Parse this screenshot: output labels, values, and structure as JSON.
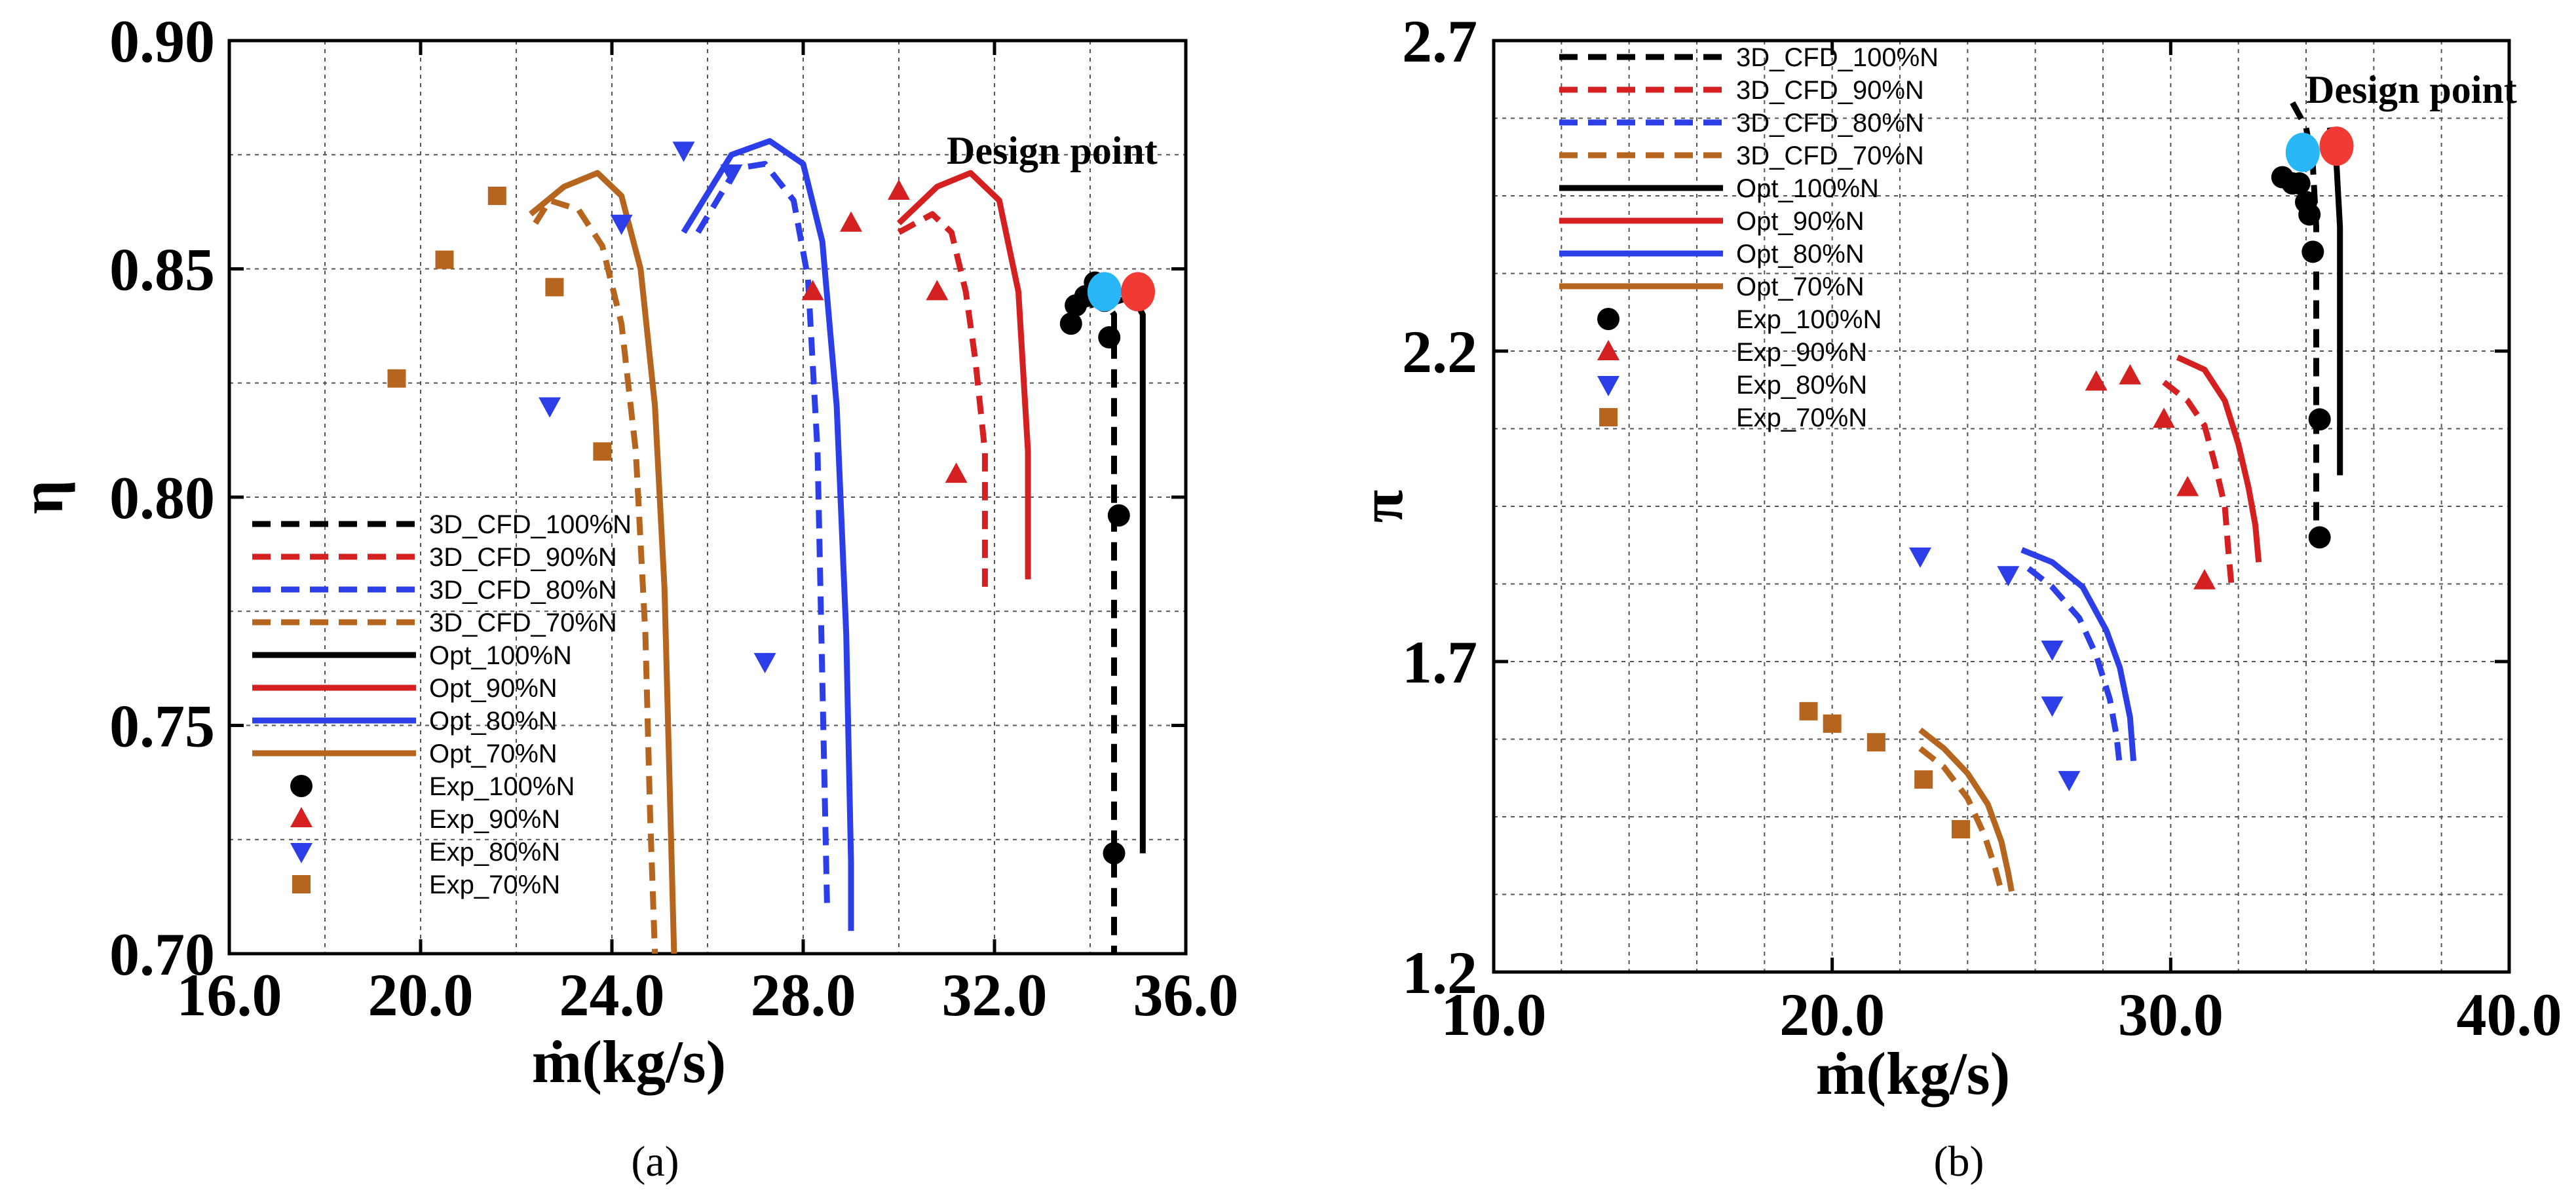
{
  "chart_data": [
    {
      "panel": "(a)",
      "type": "line",
      "xlabel": "ṁ(kg/s)",
      "ylabel": "η",
      "xlim": [
        16.0,
        36.0
      ],
      "ylim": [
        0.7,
        0.9
      ],
      "xticks": [
        "16.0",
        "20.0",
        "24.0",
        "28.0",
        "32.0",
        "36.0"
      ],
      "yticks": [
        "0.70",
        "0.75",
        "0.80",
        "0.85",
        "0.90"
      ],
      "xtick_values": [
        16,
        20,
        24,
        28,
        32,
        36
      ],
      "ytick_values": [
        0.7,
        0.75,
        0.8,
        0.85,
        0.9
      ],
      "grid": true,
      "legend_position": "lower-left",
      "annotation": {
        "text": "Design point",
        "x": 31.0,
        "y": 0.873
      },
      "series": [
        {
          "name": "3D_CFD_100%N",
          "style": "dashed",
          "color": "#000000",
          "points": [
            [
              34.0,
              0.842
            ],
            [
              34.3,
              0.843
            ],
            [
              34.5,
              0.84
            ],
            [
              34.5,
              0.8
            ],
            [
              34.5,
              0.75
            ],
            [
              34.5,
              0.7
            ]
          ]
        },
        {
          "name": "3D_CFD_90%N",
          "style": "dashed",
          "color": "#d42020",
          "points": [
            [
              30.0,
              0.858
            ],
            [
              30.7,
              0.862
            ],
            [
              31.1,
              0.858
            ],
            [
              31.4,
              0.845
            ],
            [
              31.6,
              0.83
            ],
            [
              31.8,
              0.81
            ],
            [
              31.8,
              0.78
            ]
          ]
        },
        {
          "name": "3D_CFD_80%N",
          "style": "dashed",
          "color": "#2c3ee8",
          "points": [
            [
              25.8,
              0.858
            ],
            [
              26.6,
              0.872
            ],
            [
              27.2,
              0.873
            ],
            [
              27.8,
              0.865
            ],
            [
              28.1,
              0.848
            ],
            [
              28.3,
              0.81
            ],
            [
              28.4,
              0.76
            ],
            [
              28.5,
              0.71
            ]
          ]
        },
        {
          "name": "3D_CFD_70%N",
          "style": "dashed",
          "color": "#b5651d",
          "points": [
            [
              22.4,
              0.86
            ],
            [
              22.7,
              0.865
            ],
            [
              23.3,
              0.863
            ],
            [
              23.8,
              0.855
            ],
            [
              24.2,
              0.838
            ],
            [
              24.5,
              0.81
            ],
            [
              24.7,
              0.77
            ],
            [
              24.8,
              0.73
            ],
            [
              24.9,
              0.7
            ]
          ]
        },
        {
          "name": "Opt_100%N",
          "style": "solid",
          "color": "#000000",
          "points": [
            [
              34.3,
              0.842
            ],
            [
              34.9,
              0.844
            ],
            [
              35.1,
              0.84
            ],
            [
              35.1,
              0.8
            ],
            [
              35.1,
              0.76
            ],
            [
              35.1,
              0.722
            ]
          ]
        },
        {
          "name": "Opt_90%N",
          "style": "solid",
          "color": "#d42020",
          "points": [
            [
              30.0,
              0.86
            ],
            [
              30.8,
              0.868
            ],
            [
              31.5,
              0.871
            ],
            [
              32.1,
              0.865
            ],
            [
              32.5,
              0.845
            ],
            [
              32.7,
              0.81
            ],
            [
              32.7,
              0.782
            ]
          ]
        },
        {
          "name": "Opt_80%N",
          "style": "solid",
          "color": "#2c3ee8",
          "points": [
            [
              25.5,
              0.858
            ],
            [
              26.5,
              0.875
            ],
            [
              27.3,
              0.878
            ],
            [
              28.0,
              0.873
            ],
            [
              28.4,
              0.856
            ],
            [
              28.7,
              0.82
            ],
            [
              28.9,
              0.77
            ],
            [
              29.0,
              0.72
            ],
            [
              29.0,
              0.705
            ]
          ]
        },
        {
          "name": "Opt_70%N",
          "style": "solid",
          "color": "#b5651d",
          "points": [
            [
              22.3,
              0.862
            ],
            [
              23.0,
              0.868
            ],
            [
              23.7,
              0.871
            ],
            [
              24.2,
              0.866
            ],
            [
              24.6,
              0.85
            ],
            [
              24.9,
              0.82
            ],
            [
              25.1,
              0.78
            ],
            [
              25.2,
              0.74
            ],
            [
              25.3,
              0.7
            ]
          ]
        },
        {
          "name": "Exp_100%N",
          "style": "marker",
          "marker": "circle",
          "color": "#000000",
          "points": [
            [
              33.6,
              0.838
            ],
            [
              33.7,
              0.842
            ],
            [
              33.9,
              0.844
            ],
            [
              34.1,
              0.847
            ],
            [
              34.3,
              0.843
            ],
            [
              34.4,
              0.835
            ],
            [
              34.6,
              0.796
            ],
            [
              34.5,
              0.722
            ]
          ]
        },
        {
          "name": "Exp_90%N",
          "style": "marker",
          "marker": "triangle-up",
          "color": "#d42020",
          "points": [
            [
              28.2,
              0.845
            ],
            [
              29.0,
              0.86
            ],
            [
              30.0,
              0.867
            ],
            [
              30.8,
              0.845
            ],
            [
              31.2,
              0.805
            ]
          ]
        },
        {
          "name": "Exp_80%N",
          "style": "marker",
          "marker": "triangle-down",
          "color": "#2c3ee8",
          "points": [
            [
              22.7,
              0.82
            ],
            [
              24.2,
              0.86
            ],
            [
              25.5,
              0.876
            ],
            [
              26.5,
              0.871
            ],
            [
              27.2,
              0.764
            ]
          ]
        },
        {
          "name": "Exp_70%N",
          "style": "marker",
          "marker": "square",
          "color": "#b5651d",
          "points": [
            [
              19.5,
              0.826
            ],
            [
              20.5,
              0.852
            ],
            [
              21.6,
              0.866
            ],
            [
              22.8,
              0.846
            ],
            [
              23.8,
              0.81
            ]
          ]
        },
        {
          "name": "",
          "style": "marker",
          "marker": "design-point",
          "color": "#29b6f6",
          "points": [
            [
              34.3,
              0.845
            ]
          ]
        },
        {
          "name": "",
          "style": "marker",
          "marker": "design-point",
          "color": "#f23a35",
          "points": [
            [
              35.0,
              0.845
            ]
          ]
        }
      ]
    },
    {
      "panel": "(b)",
      "type": "line",
      "xlabel": "ṁ(kg/s)",
      "ylabel": "π",
      "xlim": [
        10.0,
        40.0
      ],
      "ylim": [
        1.2,
        2.7
      ],
      "xticks": [
        "10.0",
        "20.0",
        "30.0",
        "40.0"
      ],
      "yticks": [
        "1.2",
        "1.7",
        "2.2",
        "2.7"
      ],
      "xtick_values": [
        10,
        20,
        30,
        40
      ],
      "ytick_values": [
        1.2,
        1.7,
        2.2,
        2.7
      ],
      "grid": true,
      "legend_position": "top-left",
      "annotation": {
        "text": "Design point",
        "x": 34.0,
        "y": 2.6
      },
      "series": [
        {
          "name": "3D_CFD_100%N",
          "style": "dashed",
          "color": "#000000",
          "points": [
            [
              33.6,
              2.6
            ],
            [
              34.0,
              2.56
            ],
            [
              34.2,
              2.5
            ],
            [
              34.3,
              2.4
            ],
            [
              34.3,
              2.2
            ],
            [
              34.3,
              2.0
            ],
            [
              34.3,
              1.9
            ]
          ]
        },
        {
          "name": "3D_CFD_90%N",
          "style": "dashed",
          "color": "#d42020",
          "points": [
            [
              29.8,
              2.15
            ],
            [
              30.5,
              2.12
            ],
            [
              31.0,
              2.08
            ],
            [
              31.3,
              2.02
            ],
            [
              31.6,
              1.95
            ],
            [
              31.7,
              1.88
            ],
            [
              31.8,
              1.82
            ]
          ]
        },
        {
          "name": "3D_CFD_80%N",
          "style": "dashed",
          "color": "#2c3ee8",
          "points": [
            [
              25.8,
              1.85
            ],
            [
              26.5,
              1.82
            ],
            [
              27.3,
              1.77
            ],
            [
              27.8,
              1.71
            ],
            [
              28.2,
              1.64
            ],
            [
              28.4,
              1.58
            ],
            [
              28.5,
              1.53
            ]
          ]
        },
        {
          "name": "3D_CFD_70%N",
          "style": "dashed",
          "color": "#b5651d",
          "points": [
            [
              22.6,
              1.56
            ],
            [
              23.3,
              1.53
            ],
            [
              24.0,
              1.48
            ],
            [
              24.5,
              1.42
            ],
            [
              24.8,
              1.37
            ],
            [
              25.0,
              1.33
            ]
          ]
        },
        {
          "name": "Opt_100%N",
          "style": "solid",
          "color": "#000000",
          "points": [
            [
              34.7,
              2.56
            ],
            [
              34.9,
              2.5
            ],
            [
              35.0,
              2.4
            ],
            [
              35.0,
              2.2
            ],
            [
              35.0,
              2.0
            ]
          ]
        },
        {
          "name": "Opt_90%N",
          "style": "solid",
          "color": "#d42020",
          "points": [
            [
              30.2,
              2.19
            ],
            [
              31.0,
              2.17
            ],
            [
              31.6,
              2.12
            ],
            [
              32.0,
              2.05
            ],
            [
              32.3,
              1.98
            ],
            [
              32.5,
              1.92
            ],
            [
              32.6,
              1.86
            ]
          ]
        },
        {
          "name": "Opt_80%N",
          "style": "solid",
          "color": "#2c3ee8",
          "points": [
            [
              25.6,
              1.88
            ],
            [
              26.5,
              1.86
            ],
            [
              27.4,
              1.82
            ],
            [
              28.1,
              1.75
            ],
            [
              28.5,
              1.69
            ],
            [
              28.8,
              1.61
            ],
            [
              28.9,
              1.54
            ]
          ]
        },
        {
          "name": "Opt_70%N",
          "style": "solid",
          "color": "#b5651d",
          "points": [
            [
              22.6,
              1.59
            ],
            [
              23.3,
              1.56
            ],
            [
              24.0,
              1.52
            ],
            [
              24.6,
              1.47
            ],
            [
              25.0,
              1.41
            ],
            [
              25.2,
              1.36
            ],
            [
              25.3,
              1.33
            ]
          ]
        },
        {
          "name": "Exp_100%N",
          "style": "marker",
          "marker": "circle",
          "color": "#000000",
          "points": [
            [
              33.3,
              2.48
            ],
            [
              33.6,
              2.47
            ],
            [
              33.8,
              2.47
            ],
            [
              34.0,
              2.44
            ],
            [
              34.1,
              2.42
            ],
            [
              34.2,
              2.36
            ],
            [
              34.4,
              2.09
            ],
            [
              34.4,
              1.9
            ]
          ]
        },
        {
          "name": "Exp_90%N",
          "style": "marker",
          "marker": "triangle-up",
          "color": "#d42020",
          "points": [
            [
              27.8,
              2.15
            ],
            [
              28.8,
              2.16
            ],
            [
              29.8,
              2.09
            ],
            [
              30.5,
              1.98
            ],
            [
              31.0,
              1.83
            ]
          ]
        },
        {
          "name": "Exp_80%N",
          "style": "marker",
          "marker": "triangle-down",
          "color": "#2c3ee8",
          "points": [
            [
              22.6,
              1.87
            ],
            [
              25.2,
              1.84
            ],
            [
              26.5,
              1.72
            ],
            [
              26.5,
              1.63
            ],
            [
              27.0,
              1.51
            ]
          ]
        },
        {
          "name": "Exp_70%N",
          "style": "marker",
          "marker": "square",
          "color": "#b5651d",
          "points": [
            [
              19.3,
              1.62
            ],
            [
              20.0,
              1.6
            ],
            [
              21.3,
              1.57
            ],
            [
              22.7,
              1.51
            ],
            [
              23.8,
              1.43
            ]
          ]
        },
        {
          "name": "",
          "style": "marker",
          "marker": "design-point",
          "color": "#29b6f6",
          "points": [
            [
              33.9,
              2.52
            ]
          ]
        },
        {
          "name": "",
          "style": "marker",
          "marker": "design-point",
          "color": "#f23a35",
          "points": [
            [
              34.9,
              2.53
            ]
          ]
        }
      ]
    }
  ],
  "captions": [
    "(a)",
    "(b)"
  ]
}
